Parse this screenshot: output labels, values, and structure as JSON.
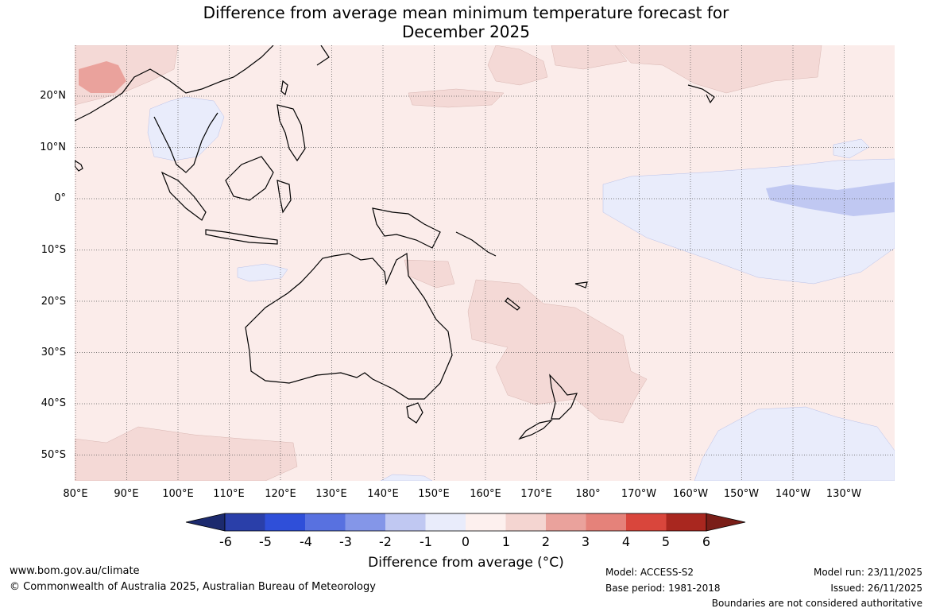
{
  "title": {
    "line1": "Difference from average mean minimum temperature forecast for",
    "line2": "December 2025"
  },
  "map": {
    "region": "Australia, Indian Ocean and Western Pacific",
    "latitude_labels": [
      "20°N",
      "10°N",
      "0°",
      "10°S",
      "20°S",
      "30°S",
      "40°S",
      "50°S"
    ],
    "longitude_labels": [
      "80°E",
      "90°E",
      "100°E",
      "110°E",
      "120°E",
      "130°E",
      "140°E",
      "150°E",
      "160°E",
      "170°E",
      "180°",
      "170°W",
      "160°W",
      "150°W",
      "140°W",
      "130°W"
    ],
    "colors": {
      "ocean_base": "#fbecea",
      "anomaly_plus_1_2": "#f4d9d6",
      "anomaly_plus_2_3": "#eaa29c",
      "anomaly_minus_0_1": "#e9ecfb",
      "anomaly_minus_1_2": "#c0c8f2",
      "land_outline": "#000000",
      "grid": "#555555"
    }
  },
  "colorbar": {
    "tick_labels": [
      "-6",
      "-5",
      "-4",
      "-3",
      "-2",
      "-1",
      "0",
      "1",
      "2",
      "3",
      "4",
      "5",
      "6"
    ],
    "colors": {
      "below_min": "#1c2a6e",
      "bins": [
        "#2a3fa9",
        "#2f4fd9",
        "#5871e0",
        "#8496e8",
        "#c0c8f2",
        "#e9ecfb",
        "#fdf0ee",
        "#f4d5d1",
        "#eaa29c",
        "#e5827a",
        "#d9463c",
        "#a9271f"
      ],
      "above_max": "#7a1e18"
    },
    "title": "Difference from average (°C)"
  },
  "footer": {
    "website": "www.bom.gov.au/climate",
    "copyright": "© Commonwealth of Australia 2025, Australian Bureau of Meteorology",
    "model": "Model: ACCESS-S2",
    "base_period": "Base period: 1981-2018",
    "model_run": "Model run: 23/11/2025",
    "issued": "Issued: 26/11/2025",
    "disclaimer": "Boundaries are not considered authoritative"
  }
}
